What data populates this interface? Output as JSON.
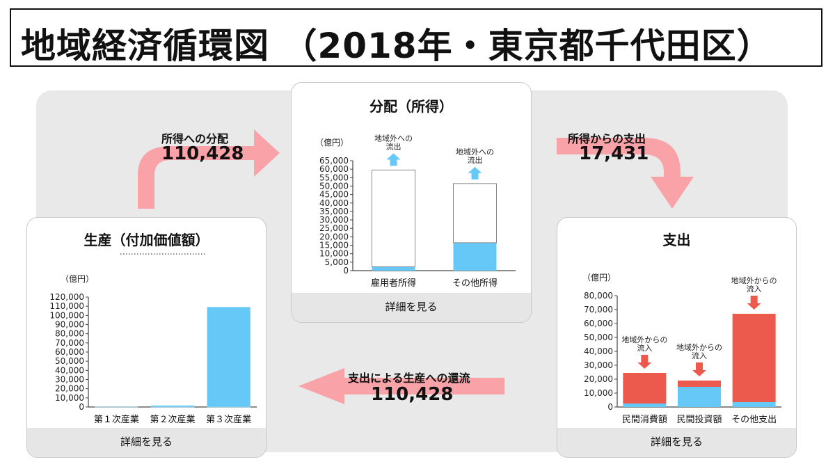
{
  "title": "地域経済循環図 （2018年・東京都千代田区）",
  "colors": {
    "blue": "#66c8f6",
    "red": "#ec5a4d",
    "arrow_pink": "#f9a3a8",
    "panel_bg": "#e9e9e9",
    "footer_bg": "#e6e6e6"
  },
  "production": {
    "title": "生産（付加価値額）",
    "unit": "（億円）",
    "footer": "詳細を見る",
    "chart_data": {
      "type": "bar",
      "title": "生産（付加価値額）",
      "ylabel": "（億円）",
      "ylim": [
        0,
        120000
      ],
      "yticks": [
        "0",
        "10,000",
        "20,000",
        "30,000",
        "40,000",
        "50,000",
        "60,000",
        "70,000",
        "80,000",
        "90,000",
        "100,000",
        "110,000",
        "120,000"
      ],
      "categories": [
        "第１次産業",
        "第２次産業",
        "第３次産業"
      ],
      "values": [
        30,
        1500,
        109000
      ]
    }
  },
  "distribution": {
    "title": "分配（所得）",
    "unit": "（億円）",
    "footer": "詳細を見る",
    "chart_data": {
      "type": "bar",
      "title": "分配（所得）",
      "ylabel": "（億円）",
      "ylim": [
        0,
        65000
      ],
      "yticks": [
        "0",
        "5,000",
        "10,000",
        "15,000",
        "20,000",
        "25,000",
        "30,000",
        "35,000",
        "40,000",
        "45,000",
        "50,000",
        "55,000",
        "60,000",
        "65,000"
      ],
      "categories": [
        "雇用者所得",
        "その他所得"
      ],
      "series": [
        {
          "values": [
            2300,
            16500
          ]
        },
        {
          "values": [
            57200,
            35000
          ]
        }
      ],
      "annotations": [
        "地域外への流出",
        "地域外への流出"
      ]
    }
  },
  "expenditure": {
    "title": "支出",
    "unit": "（億円）",
    "footer": "詳細を見る",
    "chart_data": {
      "type": "bar",
      "title": "支出",
      "ylabel": "（億円）",
      "ylim": [
        0,
        80000
      ],
      "yticks": [
        "0",
        "10,000",
        "20,000",
        "30,000",
        "40,000",
        "50,000",
        "60,000",
        "70,000",
        "80,000"
      ],
      "categories": [
        "民間消費額",
        "民間投資額",
        "その他支出"
      ],
      "series": [
        {
          "values": [
            2500,
            14500,
            3500
          ]
        },
        {
          "values": [
            22000,
            4500,
            63500
          ]
        }
      ],
      "annotations": [
        "地域外からの流入",
        "地域外からの流入",
        "地域外からの流入"
      ]
    }
  },
  "flows": {
    "income_distribution": {
      "label": "所得への分配",
      "value": "110,428"
    },
    "expenditure_from_income": {
      "label": "所得からの支出",
      "value": "17,431"
    },
    "production_return": {
      "label": "支出による生産への還流",
      "value": "110,428"
    }
  }
}
